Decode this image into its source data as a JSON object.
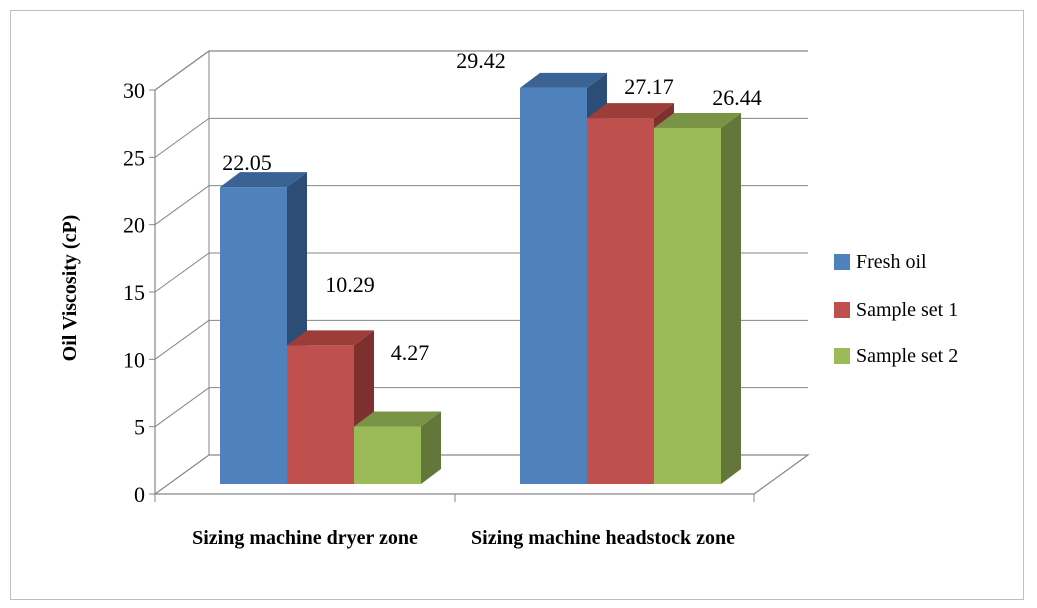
{
  "chart_data": {
    "type": "bar",
    "ylabel": "Oil Viscosity (cP)",
    "ylim": [
      0,
      30
    ],
    "yticks": [
      0,
      5,
      10,
      15,
      20,
      25,
      30
    ],
    "categories": [
      "Sizing machine dryer zone",
      "Sizing machine headstock zone"
    ],
    "series": [
      {
        "name": "Fresh oil",
        "values": [
          22.05,
          29.42
        ],
        "labels": [
          "22.05",
          "29.42"
        ],
        "color": "#4F81BD",
        "side": "#2C4D75",
        "top": "#3A6394"
      },
      {
        "name": "Sample set 1",
        "values": [
          10.29,
          27.17
        ],
        "labels": [
          "10.29",
          "27.17"
        ],
        "color": "#C0504D",
        "side": "#7E302E",
        "top": "#9C3D3A"
      },
      {
        "name": "Sample set 2",
        "values": [
          4.27,
          26.44
        ],
        "labels": [
          "4.27",
          "26.44"
        ],
        "color": "#9BBB59",
        "side": "#63773A",
        "top": "#7A9446"
      }
    ],
    "grid": true,
    "legend": "right"
  }
}
